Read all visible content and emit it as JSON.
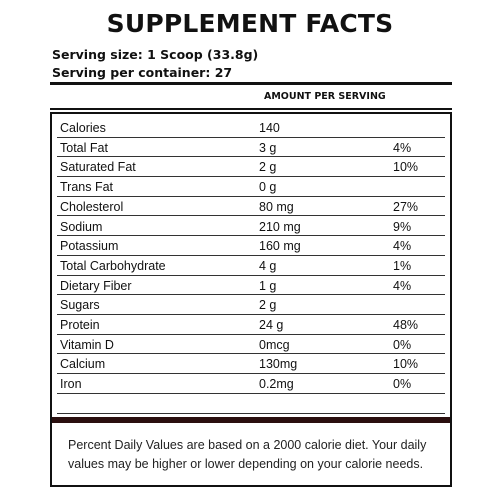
{
  "title": "SUPPLEMENT FACTS",
  "serving_size": "Serving size: 1 Scoop (33.8g)",
  "servings_per_container": "Serving per container: 27",
  "amount_header": "AMOUNT PER SERVING",
  "nutrients": [
    {
      "name": "Calories",
      "amount": "140",
      "dv": ""
    },
    {
      "name": "Total Fat",
      "amount": "3 g",
      "dv": "4%"
    },
    {
      "name": "Saturated Fat",
      "amount": "2 g",
      "dv": "10%"
    },
    {
      "name": "Trans Fat",
      "amount": "0 g",
      "dv": ""
    },
    {
      "name": "Cholesterol",
      "amount": "80 mg",
      "dv": "27%"
    },
    {
      "name": "Sodium",
      "amount": "210 mg",
      "dv": "9%"
    },
    {
      "name": "Potassium",
      "amount": "160 mg",
      "dv": "4%"
    },
    {
      "name": "Total Carbohydrate",
      "amount": "4 g",
      "dv": "1%"
    },
    {
      "name": "Dietary Fiber",
      "amount": "1 g",
      "dv": "4%"
    },
    {
      "name": "Sugars",
      "amount": "2 g",
      "dv": ""
    },
    {
      "name": "Protein",
      "amount": "24 g",
      "dv": "48%"
    },
    {
      "name": "Vitamin D",
      "amount": "0mcg",
      "dv": "0%"
    },
    {
      "name": "Calcium",
      "amount": "130mg",
      "dv": "10%"
    },
    {
      "name": "Iron",
      "amount": "0.2mg",
      "dv": "0%"
    }
  ],
  "footnote": "Percent Daily Values are based on a 2000 calorie diet. Your daily values may be higher or lower depending on your calorie needs.",
  "colors": {
    "text": "#111111",
    "band": "#2a0f0f"
  }
}
